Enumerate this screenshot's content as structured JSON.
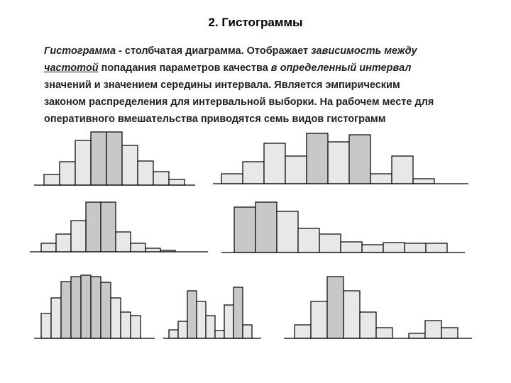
{
  "title": "2. Гистограммы",
  "paragraph": [
    [
      "Гистограмма -",
      " столбчатая диаграмма. Отображает ",
      "зависимость между"
    ],
    [
      "частотой",
      " попадания параметров качества ",
      "в определенный интервал"
    ],
    [
      "значений и значением середины интервала. Является эмпирическим"
    ],
    [
      "законом распределения для интервальной выборки. На рабочем месте для"
    ],
    [
      "оперативного вмешательства приводятся семь видов гистограмм"
    ]
  ],
  "histograms": [
    {
      "values": [
        15,
        33,
        63,
        75,
        75,
        56,
        34,
        19,
        8
      ]
    },
    {
      "values": [
        14,
        31,
        57,
        39,
        71,
        59,
        69,
        14,
        39,
        7
      ]
    },
    {
      "values": [
        12,
        25,
        44,
        70,
        70,
        28,
        12,
        5,
        2
      ]
    },
    {
      "values": [
        64,
        71,
        58,
        34,
        26,
        15,
        11,
        14,
        13,
        13
      ]
    },
    {
      "values": [
        35,
        57,
        80,
        87,
        89,
        87,
        79,
        57,
        37,
        32
      ]
    },
    {
      "values": [
        12,
        24,
        67,
        52,
        32,
        11,
        47,
        72,
        19
      ]
    },
    {
      "values": [
        19,
        52,
        87,
        67,
        37,
        15,
        0,
        7,
        25,
        15
      ]
    }
  ]
}
